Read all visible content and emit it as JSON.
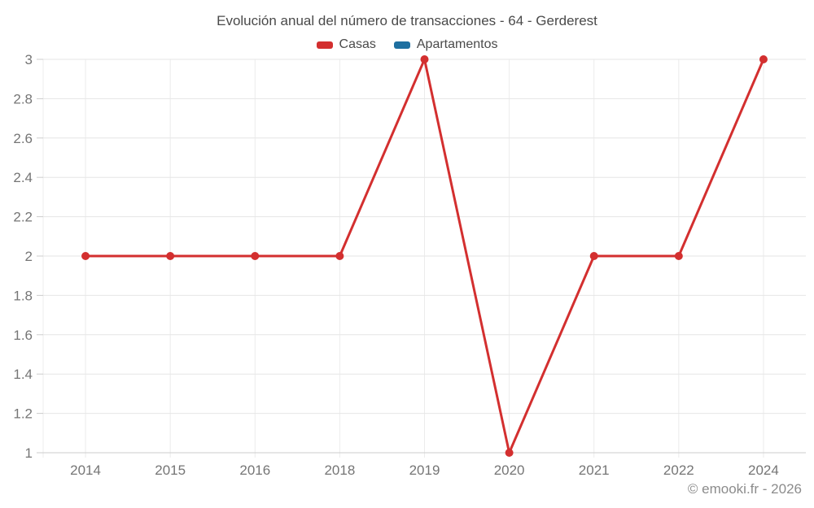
{
  "chart_data": {
    "type": "line",
    "title": "Evolución anual del número de transacciones - 64 - Gerderest",
    "categories": [
      "2014",
      "2015",
      "2016",
      "2018",
      "2019",
      "2020",
      "2021",
      "2022",
      "2024"
    ],
    "series": [
      {
        "name": "Casas",
        "color": "#d32f2f",
        "values": [
          2,
          2,
          2,
          2,
          3,
          1,
          2,
          2,
          3
        ]
      },
      {
        "name": "Apartamentos",
        "color": "#1e6fa0",
        "values": []
      }
    ],
    "xlabel": "",
    "ylabel": "",
    "ylim": [
      1,
      3
    ],
    "y_ticks": [
      1,
      1.2,
      1.4,
      1.6,
      1.8,
      2,
      2.2,
      2.4,
      2.6,
      2.8,
      3
    ],
    "y_tick_labels": [
      "1",
      "1.2",
      "1.4",
      "1.6",
      "1.8",
      "2",
      "2.2",
      "2.4",
      "2.6",
      "2.8",
      "3"
    ],
    "grid": true,
    "legend_position": "top",
    "marker": "circle"
  },
  "footer": {
    "copyright": "© emooki.fr - 2026"
  },
  "colors": {
    "title": "#4a4a4a",
    "axis_labels": "#757575",
    "h_gridline": "#e6e6e6",
    "v_gridline": "#ececec",
    "axis_line": "#cccccc",
    "tick": "#cccccc",
    "footer": "#8c8c8c",
    "background": "#ffffff"
  }
}
